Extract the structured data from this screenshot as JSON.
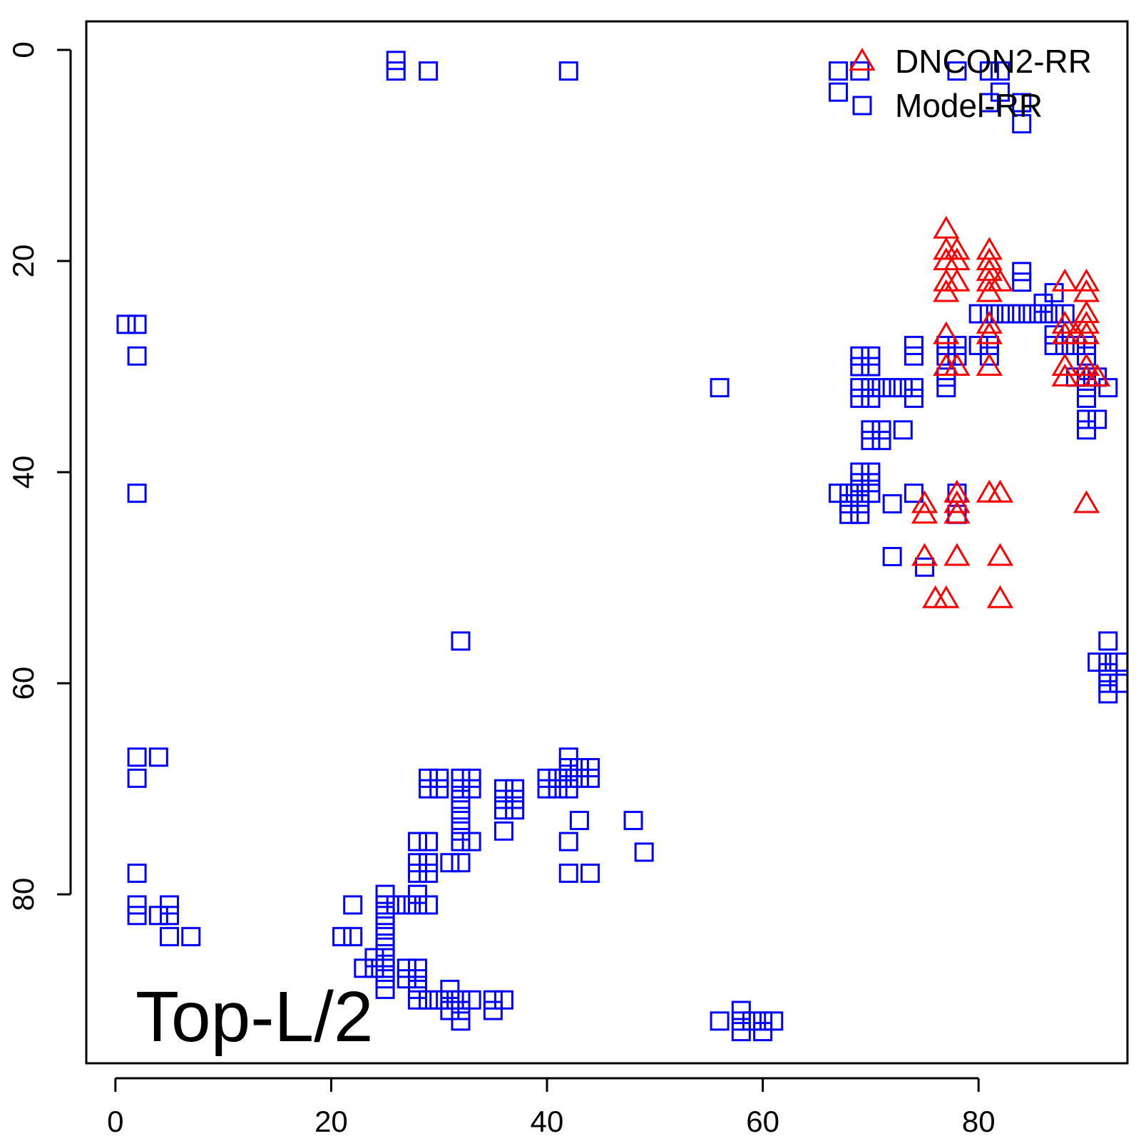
{
  "chart_data": {
    "type": "scatter",
    "title": "",
    "xlabel": "",
    "ylabel": "",
    "xlim": [
      -2.7,
      93.8
    ],
    "ylim": [
      -2.7,
      96
    ],
    "y_reversed": true,
    "x_ticks": [
      0,
      20,
      40,
      60,
      80
    ],
    "y_ticks": [
      0,
      20,
      40,
      60,
      80
    ],
    "annotation": "Top-L/2",
    "legend": {
      "position": "top-right",
      "entries": [
        {
          "label": "DNCON2-RR",
          "marker": "triangle",
          "color": "#ff0000"
        },
        {
          "label": "Model-RR",
          "marker": "square",
          "color": "#0000ff"
        }
      ]
    },
    "series": [
      {
        "name": "DNCON2-RR",
        "marker": "triangle",
        "color": "#ff0000",
        "points": [
          [
            77,
            17
          ],
          [
            77,
            19
          ],
          [
            78,
            19
          ],
          [
            77,
            20
          ],
          [
            78,
            20
          ],
          [
            77,
            22
          ],
          [
            78,
            22
          ],
          [
            77,
            23
          ],
          [
            81,
            19
          ],
          [
            81,
            20
          ],
          [
            81,
            21
          ],
          [
            81,
            22
          ],
          [
            81,
            23
          ],
          [
            82,
            22
          ],
          [
            81,
            26
          ],
          [
            81,
            27
          ],
          [
            81,
            30
          ],
          [
            77,
            27
          ],
          [
            77,
            30
          ],
          [
            78,
            30
          ],
          [
            88,
            22
          ],
          [
            88,
            26
          ],
          [
            88,
            27
          ],
          [
            88,
            30
          ],
          [
            88,
            31
          ],
          [
            89,
            27
          ],
          [
            90,
            22
          ],
          [
            90,
            23
          ],
          [
            90,
            25
          ],
          [
            90,
            26
          ],
          [
            90,
            27
          ],
          [
            90,
            30
          ],
          [
            90,
            31
          ],
          [
            91,
            31
          ],
          [
            78,
            42
          ],
          [
            78,
            43
          ],
          [
            78,
            44
          ],
          [
            81,
            42
          ],
          [
            82,
            42
          ],
          [
            75,
            43
          ],
          [
            75,
            44
          ],
          [
            90,
            43
          ],
          [
            75,
            48
          ],
          [
            78,
            48
          ],
          [
            82,
            48
          ],
          [
            76,
            52
          ],
          [
            77,
            52
          ],
          [
            82,
            52
          ]
        ]
      },
      {
        "name": "Model-RR",
        "marker": "square",
        "color": "#0000ff",
        "points": [
          [
            26,
            1
          ],
          [
            26,
            2
          ],
          [
            29,
            2
          ],
          [
            42,
            2
          ],
          [
            67,
            2
          ],
          [
            67,
            4
          ],
          [
            69,
            2
          ],
          [
            78,
            2
          ],
          [
            81,
            2
          ],
          [
            82,
            2
          ],
          [
            82,
            4
          ],
          [
            81,
            5
          ],
          [
            84,
            5
          ],
          [
            84,
            7
          ],
          [
            1,
            26
          ],
          [
            2,
            26
          ],
          [
            2,
            29
          ],
          [
            2,
            42
          ],
          [
            56,
            32
          ],
          [
            84,
            21
          ],
          [
            84,
            22
          ],
          [
            80,
            25
          ],
          [
            81,
            25
          ],
          [
            82,
            25
          ],
          [
            83,
            25
          ],
          [
            84,
            25
          ],
          [
            85,
            25
          ],
          [
            86,
            25
          ],
          [
            87,
            25
          ],
          [
            88,
            25
          ],
          [
            86,
            24
          ],
          [
            87,
            23
          ],
          [
            80,
            28
          ],
          [
            81,
            28
          ],
          [
            81,
            29
          ],
          [
            78,
            28
          ],
          [
            78,
            29
          ],
          [
            77,
            28
          ],
          [
            77,
            29
          ],
          [
            77,
            31
          ],
          [
            77,
            32
          ],
          [
            74,
            28
          ],
          [
            74,
            29
          ],
          [
            74,
            32
          ],
          [
            74,
            33
          ],
          [
            87,
            27
          ],
          [
            87,
            28
          ],
          [
            88,
            28
          ],
          [
            89,
            28
          ],
          [
            89,
            31
          ],
          [
            90,
            28
          ],
          [
            90,
            29
          ],
          [
            90,
            31
          ],
          [
            90,
            32
          ],
          [
            90,
            33
          ],
          [
            91,
            31
          ],
          [
            92,
            32
          ],
          [
            90,
            35
          ],
          [
            90,
            36
          ],
          [
            91,
            35
          ],
          [
            69,
            29
          ],
          [
            70,
            29
          ],
          [
            69,
            30
          ],
          [
            70,
            30
          ],
          [
            69,
            32
          ],
          [
            70,
            32
          ],
          [
            71,
            32
          ],
          [
            72,
            32
          ],
          [
            73,
            32
          ],
          [
            69,
            33
          ],
          [
            70,
            33
          ],
          [
            70,
            36
          ],
          [
            71,
            36
          ],
          [
            73,
            36
          ],
          [
            70,
            37
          ],
          [
            71,
            37
          ],
          [
            69,
            40
          ],
          [
            70,
            40
          ],
          [
            69,
            41
          ],
          [
            70,
            41
          ],
          [
            67,
            42
          ],
          [
            68,
            42
          ],
          [
            69,
            42
          ],
          [
            70,
            42
          ],
          [
            68,
            43
          ],
          [
            69,
            43
          ],
          [
            68,
            44
          ],
          [
            69,
            44
          ],
          [
            72,
            43
          ],
          [
            74,
            42
          ],
          [
            78,
            42
          ],
          [
            78,
            44
          ],
          [
            72,
            48
          ],
          [
            75,
            49
          ],
          [
            92,
            56
          ],
          [
            91,
            58
          ],
          [
            92,
            58
          ],
          [
            93,
            58
          ],
          [
            92,
            59
          ],
          [
            92,
            60
          ],
          [
            93,
            60
          ],
          [
            92,
            61
          ],
          [
            32,
            56
          ],
          [
            2,
            67
          ],
          [
            4,
            67
          ],
          [
            2,
            69
          ],
          [
            2,
            78
          ],
          [
            2,
            81
          ],
          [
            2,
            82
          ],
          [
            4,
            82
          ],
          [
            5,
            81
          ],
          [
            5,
            82
          ],
          [
            5,
            84
          ],
          [
            7,
            84
          ],
          [
            22,
            81
          ],
          [
            21,
            84
          ],
          [
            22,
            84
          ],
          [
            24,
            86
          ],
          [
            24,
            87
          ],
          [
            23,
            87
          ],
          [
            25,
            87
          ],
          [
            25,
            88
          ],
          [
            25,
            89
          ],
          [
            25,
            80
          ],
          [
            25,
            81
          ],
          [
            26,
            81
          ],
          [
            27,
            81
          ],
          [
            28,
            81
          ],
          [
            29,
            81
          ],
          [
            25,
            82
          ],
          [
            25,
            83
          ],
          [
            25,
            84
          ],
          [
            25,
            85
          ],
          [
            25,
            86
          ],
          [
            28,
            80
          ],
          [
            27,
            87
          ],
          [
            28,
            87
          ],
          [
            27,
            88
          ],
          [
            28,
            88
          ],
          [
            28,
            89
          ],
          [
            28,
            90
          ],
          [
            29,
            90
          ],
          [
            30,
            90
          ],
          [
            31,
            90
          ],
          [
            32,
            90
          ],
          [
            33,
            90
          ],
          [
            31,
            89
          ],
          [
            31,
            91
          ],
          [
            32,
            91
          ],
          [
            32,
            92
          ],
          [
            35,
            90
          ],
          [
            36,
            90
          ],
          [
            35,
            91
          ],
          [
            28,
            75
          ],
          [
            29,
            75
          ],
          [
            28,
            77
          ],
          [
            29,
            77
          ],
          [
            28,
            78
          ],
          [
            29,
            78
          ],
          [
            31,
            77
          ],
          [
            32,
            77
          ],
          [
            29,
            69
          ],
          [
            30,
            69
          ],
          [
            29,
            70
          ],
          [
            30,
            70
          ],
          [
            32,
            69
          ],
          [
            33,
            69
          ],
          [
            32,
            70
          ],
          [
            33,
            70
          ],
          [
            32,
            71
          ],
          [
            32,
            72
          ],
          [
            32,
            73
          ],
          [
            32,
            74
          ],
          [
            32,
            75
          ],
          [
            33,
            75
          ],
          [
            36,
            70
          ],
          [
            37,
            70
          ],
          [
            36,
            71
          ],
          [
            37,
            71
          ],
          [
            36,
            72
          ],
          [
            37,
            72
          ],
          [
            36,
            74
          ],
          [
            40,
            69
          ],
          [
            41,
            69
          ],
          [
            42,
            69
          ],
          [
            40,
            70
          ],
          [
            41,
            70
          ],
          [
            42,
            70
          ],
          [
            42,
            67
          ],
          [
            42,
            68
          ],
          [
            43,
            68
          ],
          [
            44,
            68
          ],
          [
            43,
            69
          ],
          [
            44,
            69
          ],
          [
            43,
            73
          ],
          [
            42,
            75
          ],
          [
            42,
            78
          ],
          [
            44,
            78
          ],
          [
            48,
            73
          ],
          [
            49,
            76
          ],
          [
            56,
            92
          ],
          [
            58,
            91
          ],
          [
            58,
            92
          ],
          [
            59,
            92
          ],
          [
            60,
            92
          ],
          [
            61,
            92
          ],
          [
            58,
            93
          ],
          [
            60,
            93
          ]
        ]
      }
    ]
  }
}
